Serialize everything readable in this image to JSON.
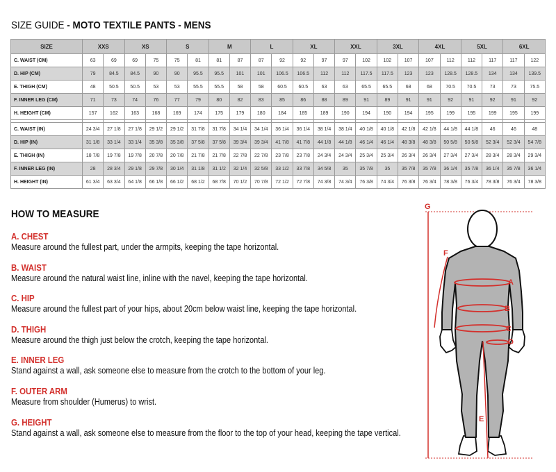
{
  "title": {
    "prefix": "SIZE GUIDE ",
    "bold": "- MOTO TEXTILE PANTS - MENS"
  },
  "table": {
    "size_header": "SIZE",
    "sizes": [
      "XXS",
      "XS",
      "S",
      "M",
      "L",
      "XL",
      "XXL",
      "3XL",
      "4XL",
      "5XL",
      "6XL"
    ],
    "cm_rows": [
      {
        "label": "C. WAIST (CM)",
        "values": [
          "63",
          "69",
          "69",
          "75",
          "75",
          "81",
          "81",
          "87",
          "87",
          "92",
          "92",
          "97",
          "97",
          "102",
          "102",
          "107",
          "107",
          "112",
          "112",
          "117",
          "117",
          "122"
        ]
      },
      {
        "label": "D. HIP (CM)",
        "values": [
          "79",
          "84.5",
          "84.5",
          "90",
          "90",
          "95.5",
          "95.5",
          "101",
          "101",
          "106.5",
          "106.5",
          "112",
          "112",
          "117.5",
          "117.5",
          "123",
          "123",
          "128.5",
          "128.5",
          "134",
          "134",
          "139.5"
        ]
      },
      {
        "label": "E. THIGH (CM)",
        "values": [
          "48",
          "50.5",
          "50.5",
          "53",
          "53",
          "55.5",
          "55.5",
          "58",
          "58",
          "60.5",
          "60.5",
          "63",
          "63",
          "65.5",
          "65.5",
          "68",
          "68",
          "70.5",
          "70.5",
          "73",
          "73",
          "75.5"
        ]
      },
      {
        "label": "F. INNER LEG (CM)",
        "values": [
          "71",
          "73",
          "74",
          "76",
          "77",
          "79",
          "80",
          "82",
          "83",
          "85",
          "86",
          "88",
          "89",
          "91",
          "89",
          "91",
          "91",
          "92",
          "91",
          "92",
          "91",
          "92"
        ]
      },
      {
        "label": "H. HEIGHT (CM)",
        "values": [
          "157",
          "162",
          "163",
          "168",
          "169",
          "174",
          "175",
          "179",
          "180",
          "184",
          "185",
          "189",
          "190",
          "194",
          "190",
          "194",
          "195",
          "199",
          "195",
          "199",
          "195",
          "199"
        ]
      }
    ],
    "in_rows": [
      {
        "label": "C. WAIST (IN)",
        "values": [
          "24 3/4",
          "27 1/8",
          "27 1/8",
          "29 1/2",
          "29 1/2",
          "31 7/8",
          "31 7/8",
          "34 1/4",
          "34 1/4",
          "36 1/4",
          "36 1/4",
          "38 1/4",
          "38 1/4",
          "40 1/8",
          "40 1/8",
          "42 1/8",
          "42 1/8",
          "44 1/8",
          "44 1/8",
          "46",
          "46",
          "48"
        ]
      },
      {
        "label": "D. HIP (IN)",
        "values": [
          "31 1/8",
          "33 1/4",
          "33 1/4",
          "35 3/8",
          "35 3/8",
          "37 5/8",
          "37 5/8",
          "39 3/4",
          "39 3/4",
          "41 7/8",
          "41 7/8",
          "44 1/8",
          "44 1/8",
          "46 1/4",
          "46 1/4",
          "48 3/8",
          "48 3/8",
          "50 5/8",
          "50 5/8",
          "52 3/4",
          "52 3/4",
          "54 7/8"
        ]
      },
      {
        "label": "E. THIGH (IN)",
        "values": [
          "18 7/8",
          "19 7/8",
          "19 7/8",
          "20 7/8",
          "20 7/8",
          "21 7/8",
          "21 7/8",
          "22 7/8",
          "22 7/8",
          "23 7/8",
          "23 7/8",
          "24 3/4",
          "24 3/4",
          "25 3/4",
          "25 3/4",
          "26 3/4",
          "26 3/4",
          "27 3/4",
          "27 3/4",
          "28 3/4",
          "28 3/4",
          "29 3/4"
        ]
      },
      {
        "label": "F. INNER LEG (IN)",
        "values": [
          "28",
          "28 3/4",
          "29 1/8",
          "29 7/8",
          "30 1/4",
          "31 1/8",
          "31 1/2",
          "32 1/4",
          "32 5/8",
          "33 1/2",
          "33 7/8",
          "34 5/8",
          "35",
          "35 7/8",
          "35",
          "35 7/8",
          "35 7/8",
          "36 1/4",
          "35 7/8",
          "36 1/4",
          "35 7/8",
          "36 1/4"
        ]
      },
      {
        "label": "H. HEIGHT (IN)",
        "values": [
          "61 3/4",
          "63 3/4",
          "64 1/8",
          "66 1/8",
          "66 1/2",
          "68 1/2",
          "68 7/8",
          "70 1/2",
          "70 7/8",
          "72 1/2",
          "72 7/8",
          "74 3/8",
          "74 3/4",
          "76 3/8",
          "74 3/4",
          "76 3/8",
          "76 3/4",
          "78 3/8",
          "76 3/4",
          "78 3/8",
          "76 3/4",
          "78 3/8"
        ]
      }
    ]
  },
  "how_to_measure": {
    "heading": "HOW TO MEASURE",
    "items": [
      {
        "title": "A. CHEST",
        "text": "Measure around the fullest part, under the armpits, keeping the tape horizontal."
      },
      {
        "title": "B. WAIST",
        "text": "Measure around the natural waist line, inline with the navel, keeping the tape horizontal."
      },
      {
        "title": "C. HIP",
        "text": "Measure around the fullest part of your hips, about 20cm below waist line, keeping the tape horizontal."
      },
      {
        "title": "D. THIGH",
        "text": "Measure around the thigh just below the crotch, keeping the tape horizontal."
      },
      {
        "title": "E. INNER LEG",
        "text": "Stand against a wall, ask someone else to measure from the crotch to the bottom of your leg."
      },
      {
        "title": "F. OUTER ARM",
        "text": "Measure from shoulder (Humerus) to wrist."
      },
      {
        "title": "G. HEIGHT",
        "text": "Stand against a wall, ask someone else to measure from the floor to the top of your head, keeping the tape vertical."
      }
    ]
  },
  "figure": {
    "labels": {
      "a": "A",
      "b": "B",
      "c": "C",
      "d": "D",
      "e": "E",
      "f": "F",
      "g": "G"
    }
  },
  "colors": {
    "accent": "#d3302c",
    "header_gray": "#c9c9c9",
    "row_gray": "#d6d6d6",
    "suit_gray": "#b3b3b3"
  }
}
